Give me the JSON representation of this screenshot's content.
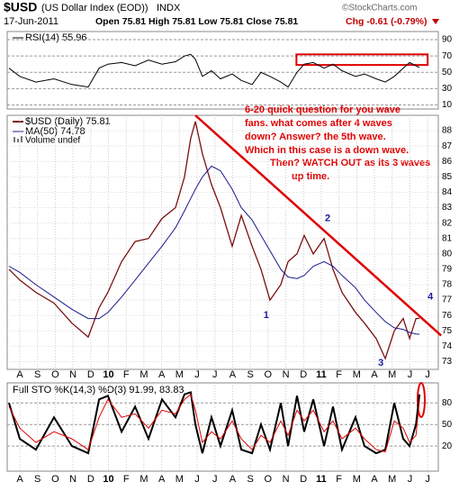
{
  "header": {
    "symbol": "$USD",
    "name": "(US Dollar Index (EOD))",
    "exchange": "INDX",
    "date": "17-Jun-2011",
    "ohlc": "Open 75.81  High 75.81  Low 75.81  Close 75.81",
    "change": "Chg -0.61 (-0.79%)",
    "brand": "©StockCharts.com"
  },
  "chart_data": [
    {
      "type": "line",
      "ylim": [
        5,
        100
      ],
      "yticks": [
        10,
        30,
        50,
        70,
        90
      ],
      "xlim": [
        -0.71,
        23.6
      ],
      "x": [
        -0.61,
        0,
        0.91,
        1.93,
        2.94,
        3.86,
        4.47,
        4.97,
        5.74,
        6.5,
        7.26,
        8.02,
        8.78,
        9.29,
        9.64,
        9.9,
        10.3,
        10.81,
        11.32,
        11.98,
        12.49,
        13.1,
        13.6,
        14.11,
        14.72,
        15.13,
        15.63,
        16.04,
        16.55,
        17.16,
        17.66,
        18.17,
        18.93,
        19.44,
        20.1,
        20.61,
        21.12,
        21.62,
        21.98,
        22.34,
        22.54
      ],
      "series": [
        {
          "name": "RSI(14) 55.96",
          "color": "#000000",
          "values": [
            55,
            45,
            38,
            42,
            35,
            32,
            55,
            60,
            62,
            58,
            65,
            60,
            63,
            70,
            72,
            66,
            45,
            52,
            42,
            48,
            40,
            35,
            50,
            45,
            38,
            32,
            50,
            60,
            62,
            55,
            60,
            52,
            45,
            48,
            42,
            38,
            45,
            55,
            62,
            58,
            55.96
          ]
        }
      ],
      "box": {
        "x": [
          15.6,
          23.0
        ],
        "y": [
          59,
          72
        ],
        "color": "#e00000"
      }
    },
    {
      "type": "line",
      "ylim": [
        72.5,
        89
      ],
      "yticks": [
        73,
        74,
        75,
        76,
        77,
        78,
        79,
        80,
        81,
        82,
        83,
        84,
        85,
        86,
        87,
        88
      ],
      "xlim": [
        -0.71,
        23.6
      ],
      "xticks": [
        {
          "value": 0,
          "label": "A"
        },
        {
          "value": 1,
          "label": "S"
        },
        {
          "value": 2,
          "label": "O"
        },
        {
          "value": 3,
          "label": "N"
        },
        {
          "value": 4,
          "label": "D"
        },
        {
          "value": 5,
          "label": "10"
        },
        {
          "value": 6,
          "label": "F"
        },
        {
          "value": 7,
          "label": "M"
        },
        {
          "value": 8,
          "label": "A"
        },
        {
          "value": 9,
          "label": "M"
        },
        {
          "value": 10,
          "label": "J"
        },
        {
          "value": 11,
          "label": "J"
        },
        {
          "value": 12,
          "label": "A"
        },
        {
          "value": 13,
          "label": "S"
        },
        {
          "value": 14,
          "label": "O"
        },
        {
          "value": 15,
          "label": "N"
        },
        {
          "value": 16,
          "label": "D"
        },
        {
          "value": 17,
          "label": "11"
        },
        {
          "value": 18,
          "label": "F"
        },
        {
          "value": 19,
          "label": "M"
        },
        {
          "value": 20,
          "label": "A"
        },
        {
          "value": 21,
          "label": "M"
        },
        {
          "value": 22,
          "label": "J"
        },
        {
          "value": 23,
          "label": "J"
        }
      ],
      "x": [
        -0.61,
        0,
        0.91,
        1.93,
        2.94,
        3.86,
        4.47,
        4.97,
        5.74,
        6.5,
        7.26,
        8.02,
        8.78,
        9.29,
        9.64,
        9.9,
        10.3,
        10.81,
        11.32,
        11.98,
        12.49,
        13.1,
        13.6,
        14.11,
        14.72,
        15.13,
        15.63,
        16.04,
        16.55,
        17.16,
        17.66,
        18.17,
        18.93,
        19.44,
        20.1,
        20.61,
        21.12,
        21.62,
        21.98,
        22.34,
        22.54
      ],
      "series": [
        {
          "name": "$USD (Daily) 75.81",
          "color": "#7a1010",
          "values": [
            79.0,
            78.3,
            77.5,
            76.8,
            75.5,
            74.6,
            76.5,
            77.5,
            79.5,
            80.8,
            81.0,
            82.3,
            83.0,
            85.0,
            87.5,
            88.6,
            86.5,
            84.5,
            83.0,
            80.5,
            82.5,
            80.5,
            79.0,
            77.0,
            78.0,
            79.5,
            80.0,
            81.2,
            80.0,
            81.0,
            79.0,
            77.5,
            76.2,
            75.5,
            74.5,
            73.2,
            75.0,
            75.8,
            74.5,
            75.8,
            75.81
          ]
        },
        {
          "name": "MA(50) 74.78",
          "color": "#1a1a8c",
          "values": [
            79.2,
            78.8,
            78.0,
            77.2,
            76.4,
            75.8,
            75.8,
            76.2,
            77.2,
            78.3,
            79.4,
            80.5,
            81.7,
            82.8,
            83.6,
            84.2,
            85.0,
            85.7,
            85.4,
            84.2,
            83.0,
            82.2,
            81.2,
            80.2,
            79.0,
            78.5,
            78.4,
            78.6,
            79.2,
            79.5,
            79.2,
            78.6,
            77.8,
            77.0,
            76.2,
            75.6,
            75.2,
            75.1,
            74.9,
            74.8,
            74.78
          ]
        }
      ],
      "volume_label": "Volume undef",
      "trendline": {
        "x": [
          9.9,
          23.76
        ],
        "y": [
          89,
          74.7
        ],
        "color": "#e00000"
      },
      "wave_labels": [
        {
          "label": "1",
          "x": 13.9,
          "y": 76.0
        },
        {
          "label": "2",
          "x": 17.36,
          "y": 82.3
        },
        {
          "label": "3",
          "x": 20.36,
          "y": 72.9
        },
        {
          "label": "4",
          "x": 23.15,
          "y": 77.2
        }
      ],
      "annotation": [
        "6-20 quick question for you wave",
        "fans. what comes after 4 waves",
        "down?  Answer? the 5th wave.",
        "Which in this case is a down wave.",
        "Then?  WATCH OUT as its 3 waves",
        "up time."
      ]
    },
    {
      "type": "line",
      "title": "Full STO %K(14,3) %D(3) 91.99, 83.83",
      "ylim": [
        -15,
        108
      ],
      "yticks": [
        20,
        50,
        80
      ],
      "xlim": [
        -0.71,
        23.6
      ],
      "xticks": [
        {
          "value": 0,
          "label": "A"
        },
        {
          "value": 1,
          "label": "S"
        },
        {
          "value": 2,
          "label": "O"
        },
        {
          "value": 3,
          "label": "N"
        },
        {
          "value": 4,
          "label": "D"
        },
        {
          "value": 5,
          "label": "10"
        },
        {
          "value": 6,
          "label": "F"
        },
        {
          "value": 7,
          "label": "M"
        },
        {
          "value": 8,
          "label": "A"
        },
        {
          "value": 9,
          "label": "M"
        },
        {
          "value": 10,
          "label": "J"
        },
        {
          "value": 11,
          "label": "J"
        },
        {
          "value": 12,
          "label": "A"
        },
        {
          "value": 13,
          "label": "S"
        },
        {
          "value": 14,
          "label": "O"
        },
        {
          "value": 15,
          "label": "N"
        },
        {
          "value": 16,
          "label": "D"
        },
        {
          "value": 17,
          "label": "11"
        },
        {
          "value": 18,
          "label": "F"
        },
        {
          "value": 19,
          "label": "M"
        },
        {
          "value": 20,
          "label": "A"
        },
        {
          "value": 21,
          "label": "M"
        },
        {
          "value": 22,
          "label": "J"
        },
        {
          "value": 23,
          "label": "J"
        }
      ],
      "x": [
        -0.61,
        0,
        0.91,
        1.93,
        2.94,
        3.86,
        4.47,
        4.97,
        5.74,
        6.5,
        7.26,
        8.02,
        8.78,
        9.29,
        9.64,
        9.9,
        10.3,
        10.81,
        11.32,
        11.98,
        12.49,
        13.1,
        13.6,
        14.11,
        14.72,
        15.13,
        15.63,
        16.04,
        16.55,
        17.16,
        17.66,
        18.17,
        18.93,
        19.44,
        20.1,
        20.61,
        21.12,
        21.62,
        21.98,
        22.34,
        22.54
      ],
      "series": [
        {
          "color": "#000000",
          "values": [
            80,
            30,
            15,
            60,
            20,
            10,
            85,
            90,
            40,
            75,
            30,
            85,
            60,
            92,
            95,
            50,
            10,
            60,
            20,
            70,
            15,
            10,
            50,
            15,
            80,
            20,
            90,
            40,
            85,
            20,
            75,
            15,
            60,
            20,
            10,
            15,
            80,
            30,
            20,
            50,
            91.99
          ]
        },
        {
          "color": "#e00000",
          "values": [
            75,
            45,
            25,
            40,
            30,
            15,
            60,
            85,
            60,
            65,
            45,
            70,
            65,
            85,
            92,
            70,
            25,
            40,
            30,
            55,
            30,
            15,
            35,
            25,
            55,
            35,
            70,
            55,
            70,
            40,
            55,
            30,
            45,
            30,
            15,
            12,
            55,
            45,
            25,
            35,
            83.83
          ]
        }
      ]
    }
  ]
}
